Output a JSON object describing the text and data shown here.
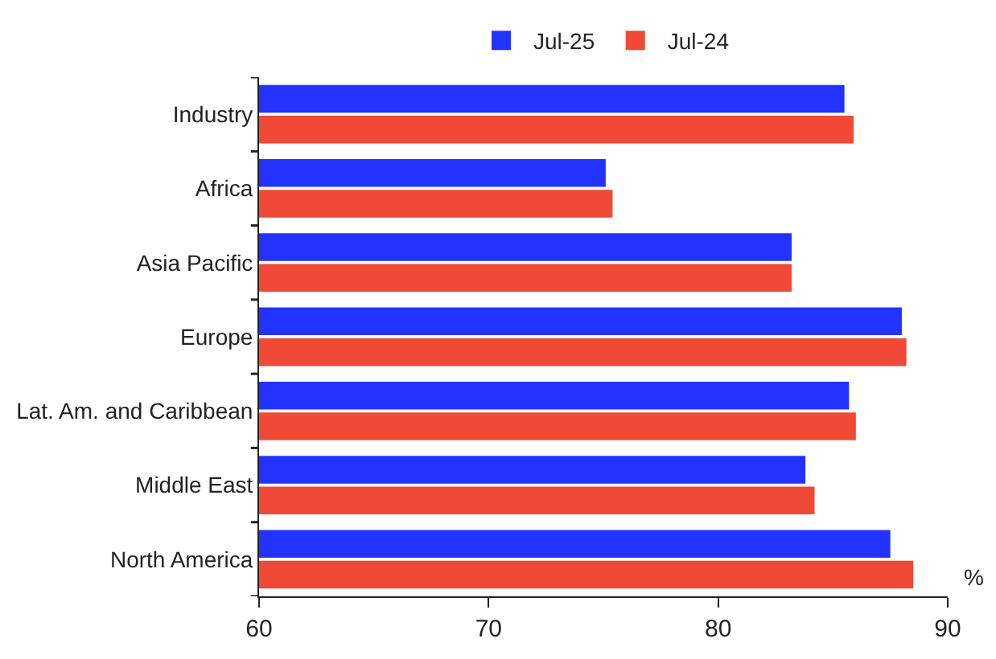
{
  "chart_data": {
    "type": "bar",
    "orientation": "horizontal",
    "xlabel": "%",
    "categories": [
      "Industry",
      "Africa",
      "Asia Pacific",
      "Europe",
      "Lat. Am. and Caribbean",
      "Middle East",
      "North America"
    ],
    "series": [
      {
        "name": "Jul-25",
        "color": "#2233ff",
        "values": [
          85.5,
          75.1,
          83.2,
          88.0,
          85.7,
          83.8,
          87.5
        ]
      },
      {
        "name": "Jul-24",
        "color": "#f04935",
        "values": [
          85.9,
          75.4,
          83.2,
          88.2,
          86.0,
          84.2,
          88.5
        ]
      }
    ],
    "xlim": [
      60,
      90
    ],
    "xticks": [
      60,
      70,
      80,
      90
    ],
    "legend": "top"
  }
}
